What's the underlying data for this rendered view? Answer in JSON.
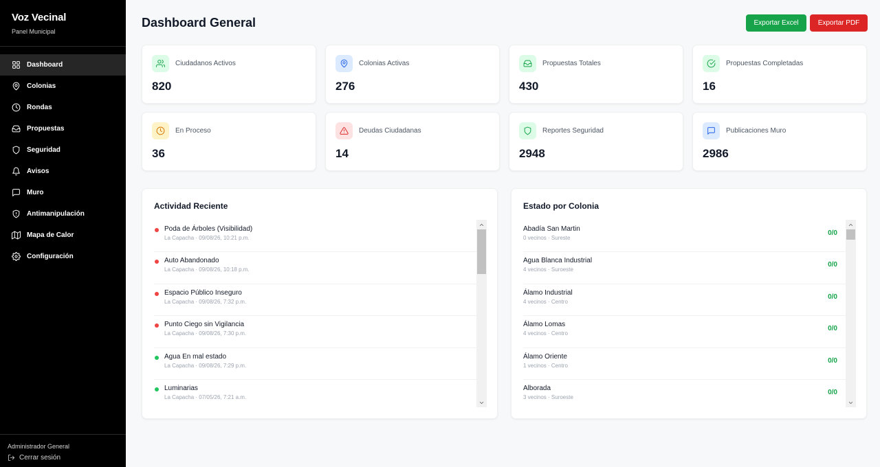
{
  "sidebar": {
    "brand_title": "Voz Vecinal",
    "brand_subtitle": "Panel Municipal",
    "items": [
      {
        "label": "Dashboard",
        "icon": "grid-icon"
      },
      {
        "label": "Colonias",
        "icon": "map-pin-icon"
      },
      {
        "label": "Rondas",
        "icon": "clock-icon"
      },
      {
        "label": "Propuestas",
        "icon": "inbox-icon"
      },
      {
        "label": "Seguridad",
        "icon": "shield-icon"
      },
      {
        "label": "Avisos",
        "icon": "bell-icon"
      },
      {
        "label": "Muro",
        "icon": "message-icon"
      },
      {
        "label": "Antimanipulación",
        "icon": "shield-alert-icon"
      },
      {
        "label": "Mapa de Calor",
        "icon": "map-icon"
      },
      {
        "label": "Configuración",
        "icon": "gear-icon"
      }
    ],
    "active_item": "Dashboard",
    "admin_name": "Administrador General",
    "logout_label": "Cerrar sesión"
  },
  "header": {
    "title": "Dashboard General",
    "export_excel_label": "Exportar Excel",
    "export_pdf_label": "Exportar PDF"
  },
  "colors": {
    "excel": "#16a34a",
    "pdf": "#dc2626",
    "sidebar": "#000000",
    "ratio": "#16a34a",
    "dot_red": "#ef4444",
    "dot_green": "#22c55e"
  },
  "stats": [
    {
      "label": "Ciudadanos Activos",
      "value": "820",
      "icon": "users-icon"
    },
    {
      "label": "Colonias Activas",
      "value": "276",
      "icon": "map-pin-icon"
    },
    {
      "label": "Propuestas Totales",
      "value": "430",
      "icon": "inbox-icon"
    },
    {
      "label": "Propuestas Completadas",
      "value": "16",
      "icon": "check-circle-icon"
    },
    {
      "label": "En Proceso",
      "value": "36",
      "icon": "clock-icon"
    },
    {
      "label": "Deudas Ciudadanas",
      "value": "14",
      "icon": "alert-triangle-icon"
    },
    {
      "label": "Reportes Seguridad",
      "value": "2948",
      "icon": "shield-icon"
    },
    {
      "label": "Publicaciones Muro",
      "value": "2986",
      "icon": "message-icon"
    }
  ],
  "activity": {
    "title": "Actividad Reciente",
    "items": [
      {
        "title": "Poda de Árboles (Visibilidad)",
        "subtitle": "La Capacha · 09/08/26, 10:21 p.m.",
        "status": "red"
      },
      {
        "title": "Auto Abandonado",
        "subtitle": "La Capacha · 09/08/26, 10:18 p.m.",
        "status": "red"
      },
      {
        "title": "Espacio Público Inseguro",
        "subtitle": "La Capacha · 09/08/26, 7:32 p.m.",
        "status": "red"
      },
      {
        "title": "Punto Ciego sin Vigilancia",
        "subtitle": "La Capacha · 09/08/26, 7:30 p.m.",
        "status": "red"
      },
      {
        "title": "Agua En mal estado",
        "subtitle": "La Capacha · 09/08/26, 7:29 p.m.",
        "status": "green"
      },
      {
        "title": "Luminarias",
        "subtitle": "La Capacha · 07/05/26, 7:21 a.m.",
        "status": "green"
      }
    ]
  },
  "colonias": {
    "title": "Estado por Colonia",
    "items": [
      {
        "name": "Abadía San Martin",
        "subtitle": "0 vecinos · Sureste",
        "ratio": "0/0"
      },
      {
        "name": "Agua Blanca Industrial",
        "subtitle": "4 vecinos · Suroeste",
        "ratio": "0/0"
      },
      {
        "name": "Álamo Industrial",
        "subtitle": "4 vecinos · Centro",
        "ratio": "0/0"
      },
      {
        "name": "Álamo Lomas",
        "subtitle": "4 vecinos · Centro",
        "ratio": "0/0"
      },
      {
        "name": "Álamo Oriente",
        "subtitle": "1 vecinos · Centro",
        "ratio": "0/0"
      },
      {
        "name": "Alborada",
        "subtitle": "3 vecinos · Suroeste",
        "ratio": "0/0"
      }
    ]
  }
}
